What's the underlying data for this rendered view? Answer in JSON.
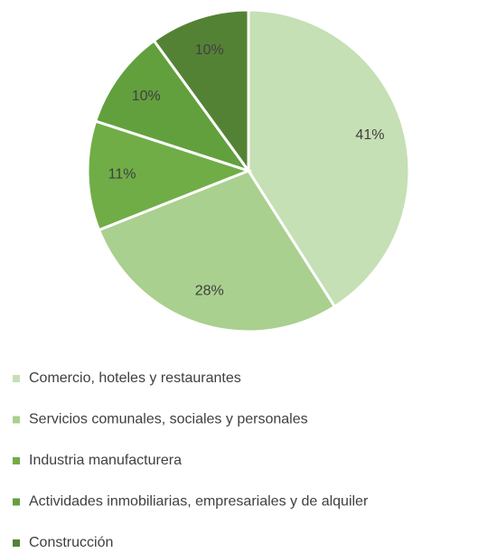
{
  "chart_data": {
    "type": "pie",
    "categories": [
      "Comercio, hoteles y restaurantes",
      "Servicios comunales, sociales y personales",
      "Industria manufacturera",
      "Actividades inmobiliarias, empresariales y de alquiler",
      "Construcción"
    ],
    "values": [
      41,
      28,
      11,
      10,
      10
    ],
    "value_labels": [
      "41%",
      "28%",
      "11%",
      "10%",
      "10%"
    ],
    "colors": [
      "#c5e0b4",
      "#a9d08e",
      "#70ad47",
      "#62a03e",
      "#548235"
    ],
    "legend": "bottom"
  }
}
